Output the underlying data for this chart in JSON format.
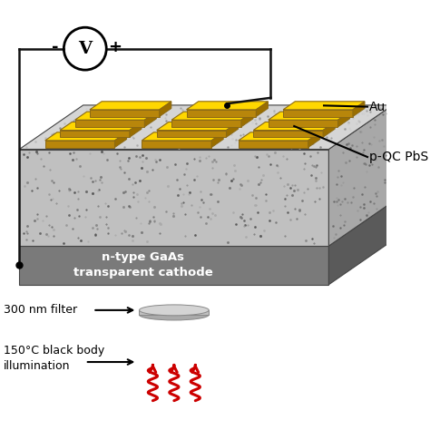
{
  "bg_color": "#ffffff",
  "granite_front_color": "#c0c0c0",
  "granite_top_color": "#d5d5d5",
  "granite_right_color": "#a8a8a8",
  "gaas_front_color": "#7a7a7a",
  "gaas_top_color": "#909090",
  "gaas_right_color": "#5a5a5a",
  "au_top_color": "#FFD700",
  "au_side_color": "#B8860B",
  "au_edge_color": "#8B6914",
  "wire_color": "#111111",
  "text_color": "#111111",
  "red_color": "#cc0000",
  "filter_top_color": "#d4d4d4",
  "filter_side_color": "#aaaaaa",
  "label_gaas": "n-type GaAs\ntransparent cathode",
  "label_au": "Au",
  "label_pqc": "p-QC PbS",
  "label_filter": "300 nm filter",
  "label_minus": "-",
  "label_plus": "+",
  "label_v": "V"
}
